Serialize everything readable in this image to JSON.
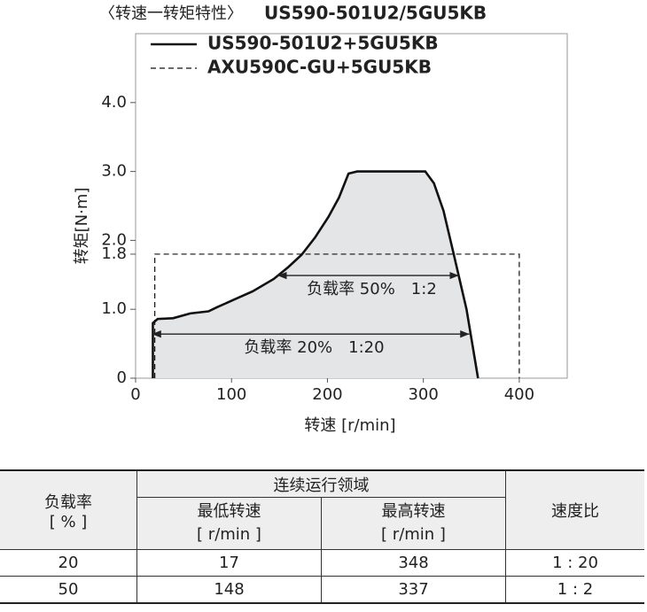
{
  "chart_data": {
    "type": "line",
    "title": "〈转速一转矩特性〉",
    "subtitle": "US590-501U2/5GU5KB",
    "x_label": "转速 [r/min]",
    "y_label": "转矩[N·m]",
    "xlim": [
      0,
      450
    ],
    "ylim": [
      0,
      5.0
    ],
    "xticks": [
      0,
      100,
      200,
      300,
      400
    ],
    "yticks": [
      0,
      {
        "value": 1,
        "label": "1.0"
      },
      1.8,
      {
        "value": 2,
        "label": "2.0"
      },
      {
        "value": 3,
        "label": "3.0"
      },
      {
        "value": 4,
        "label": "4.0"
      }
    ],
    "grid": false,
    "legend": "top-left",
    "series": [
      {
        "name": "US590-501U2+5GU5KB",
        "color": "#111111",
        "line_style": "solid",
        "fill": "#e4e5e7",
        "x": [
          18,
          18,
          23,
          39,
          57,
          76,
          85,
          101,
          122,
          144,
          159,
          173,
          187,
          201,
          212,
          222,
          231,
          302,
          311,
          321,
          332,
          345,
          357
        ],
        "values": [
          0,
          0.8,
          0.86,
          0.87,
          0.94,
          0.97,
          1.03,
          1.13,
          1.26,
          1.44,
          1.61,
          1.79,
          2.04,
          2.34,
          2.62,
          2.97,
          3.0,
          3.0,
          2.83,
          2.43,
          1.78,
          1.0,
          0
        ]
      },
      {
        "name": "AXU590C-GU+5GU5KB",
        "color": "#111111",
        "line_style": "dashed",
        "x": [
          20,
          20,
          400,
          400
        ],
        "values": [
          0,
          1.8,
          1.8,
          0
        ]
      }
    ],
    "annotations": [
      {
        "text": "负载率 50%　1:2",
        "x": [
          148,
          337
        ],
        "y": 1.49
      },
      {
        "text": "负载率 20%　1:20",
        "x": [
          17,
          348
        ],
        "y": 0.64
      }
    ]
  },
  "table": {
    "header": {
      "load": "负载率",
      "load_unit": "[ % ]",
      "region": "连续运行领域",
      "min": "最低转速",
      "min_unit": "[ r/min ]",
      "max": "最高转速",
      "max_unit": "[ r/min ]",
      "ratio": "速度比"
    },
    "rows": [
      [
        20,
        17,
        348,
        "1 : 20"
      ],
      [
        50,
        148,
        337,
        "1 : 2"
      ]
    ]
  }
}
